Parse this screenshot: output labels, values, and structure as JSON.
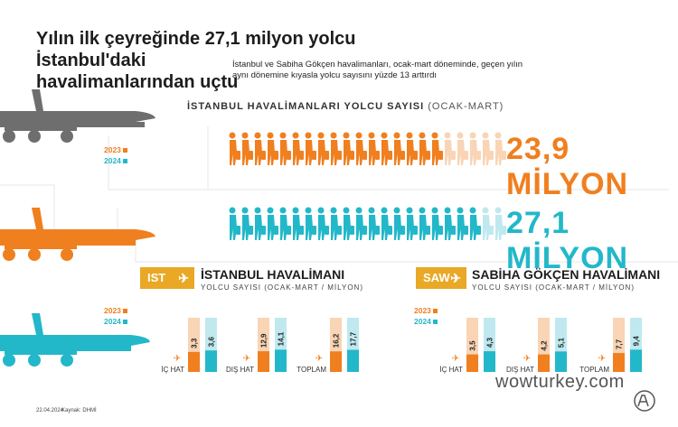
{
  "header": {
    "title_line1": "Yılın ilk çeyreğinde 27,1 milyon yolcu İstanbul'daki",
    "title_line2": "havalimanlarından uçtu",
    "subtitle_line1": "İstanbul ve Sabiha Gökçen havalimanları, ocak-mart döneminde, geçen yılın",
    "subtitle_line2": "aynı dönemine kıyasla yolcu sayısını yüzde 13 arttırdı"
  },
  "summary": {
    "section_title_bold": "İSTANBUL HAVALİMANLARI YOLCU SAYISI",
    "section_title_light": "(OCAK-MART)",
    "year_2023": "2023",
    "year_2024": "2024",
    "value_2023": "23,9 MİLYON",
    "value_2024": "27,1 MİLYON"
  },
  "colors": {
    "orange": "#f07f1f",
    "orange_light": "#f9d4b5",
    "teal": "#22b8c9",
    "teal_light": "#bfe9ef",
    "gold": "#e9a825",
    "plane_gray": "#6e6e6e"
  },
  "legend": {
    "year_2023": "2023",
    "year_2024": "2024"
  },
  "airports": [
    {
      "code": "IST",
      "name": "İSTANBUL HAVALİMANI",
      "subtitle": "YOLCU SAYISI (OCAK-MART / MİLYON)"
    },
    {
      "code": "SAW",
      "name": "SABİHA GÖKÇEN HAVALİMANI",
      "subtitle": "YOLCU SAYISI (OCAK-MART / MİLYON)"
    }
  ],
  "chart_data": [
    {
      "type": "bar",
      "title": "İSTANBUL HAVALİMANI",
      "subtitle": "YOLCU SAYISI (OCAK-MART / MİLYON)",
      "categories": [
        "İÇ HAT",
        "DIŞ HAT",
        "TOPLAM"
      ],
      "series": [
        {
          "name": "2023",
          "values": [
            3.3,
            12.9,
            16.2
          ],
          "labels": [
            "3,3",
            "12,9",
            "16,2"
          ]
        },
        {
          "name": "2024",
          "values": [
            3.6,
            14.1,
            17.7
          ],
          "labels": [
            "3,6",
            "14,1",
            "17,7"
          ]
        }
      ]
    },
    {
      "type": "bar",
      "title": "SABİHA GÖKÇEN HAVALİMANI",
      "subtitle": "YOLCU SAYISI (OCAK-MART / MİLYON)",
      "categories": [
        "İÇ HAT",
        "DIŞ HAT",
        "TOPLAM"
      ],
      "series": [
        {
          "name": "2023",
          "values": [
            3.5,
            4.2,
            7.7
          ],
          "labels": [
            "3,5",
            "4,2",
            "7,7"
          ]
        },
        {
          "name": "2024",
          "values": [
            4.3,
            5.1,
            9.4
          ],
          "labels": [
            "4,3",
            "5,1",
            "9,4"
          ]
        }
      ]
    }
  ],
  "footer": {
    "date": "22.04.2024",
    "source": "Kaynak: DHMİ"
  },
  "watermark": {
    "text": "wowturkey.com",
    "logo_text": "AA"
  }
}
